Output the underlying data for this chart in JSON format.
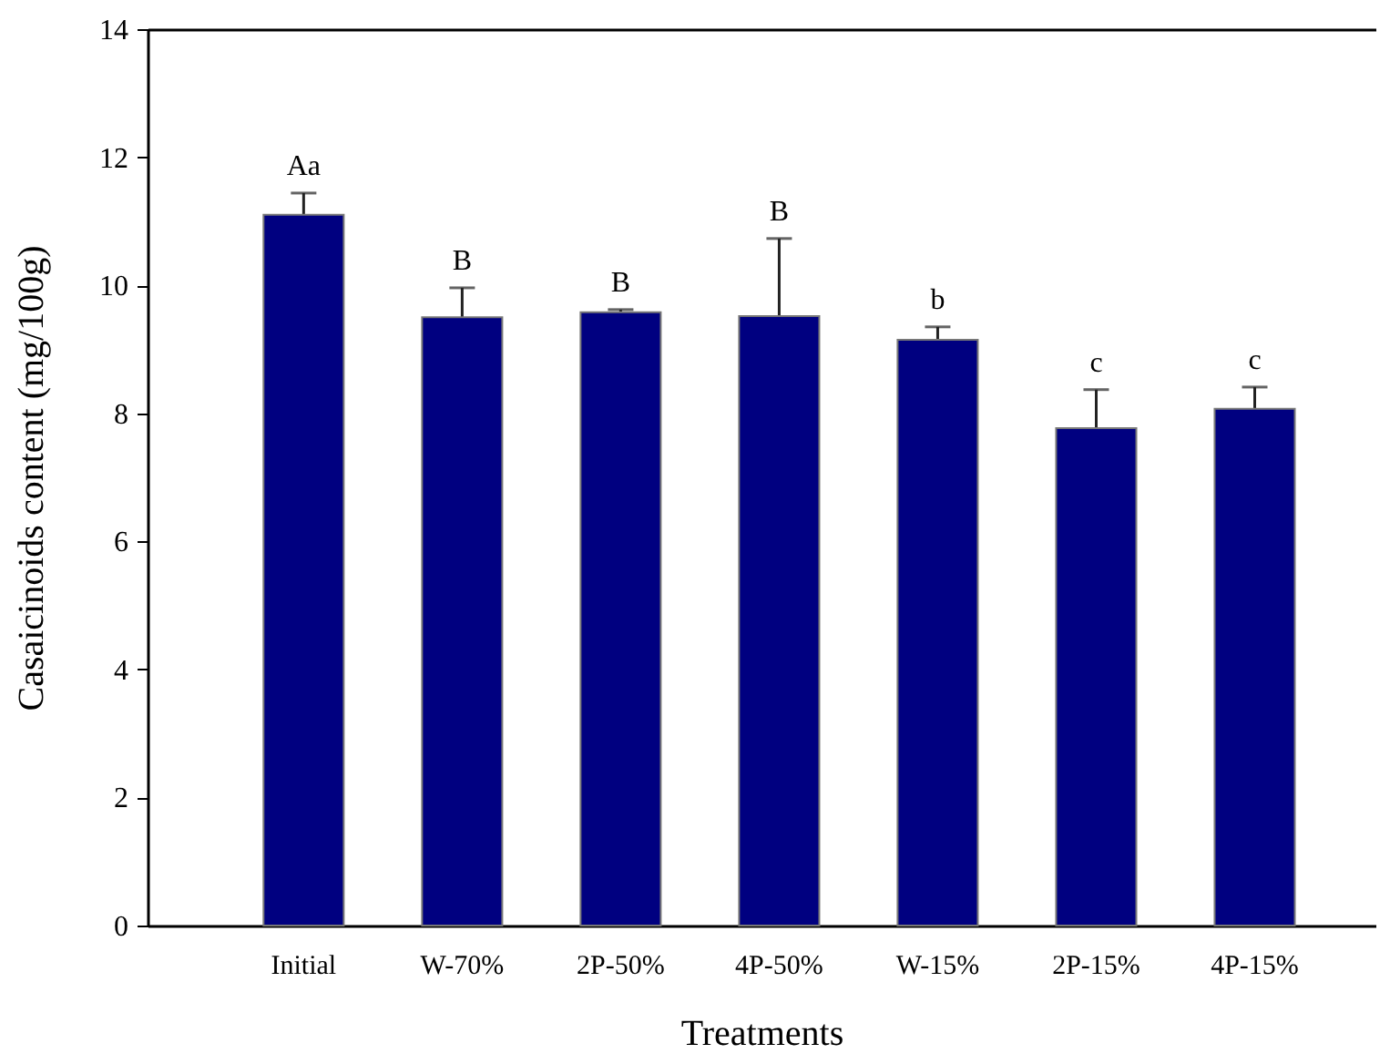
{
  "chart_data": {
    "type": "bar",
    "xlabel": "Treatments",
    "ylabel": "Casaicinoids content (mg/100g)",
    "categories": [
      "Initial",
      "W-70%",
      "2P-50%",
      "4P-50%",
      "W-15%",
      "2P-15%",
      "4P-15%"
    ],
    "values": [
      11.1,
      9.5,
      9.58,
      9.52,
      9.15,
      7.77,
      8.07
    ],
    "errors": [
      0.34,
      0.46,
      0.04,
      1.21,
      0.2,
      0.6,
      0.34
    ],
    "color": "#000080",
    "ylim": [
      0,
      14
    ],
    "yticks": [
      0,
      2,
      4,
      6,
      8,
      10,
      12,
      14
    ],
    "annotations": [
      {
        "text": "Aa",
        "x": "Initial",
        "y": 11.44
      },
      {
        "text": "B",
        "x": "W-70%",
        "y": 9.96
      },
      {
        "text": "B",
        "x": "2P-50%",
        "y": 9.62
      },
      {
        "text": "B",
        "x": "4P-50%",
        "y": 10.73
      },
      {
        "text": "b",
        "x": "W-15%",
        "y": 9.35
      },
      {
        "text": "c",
        "x": "2P-15%",
        "y": 8.37
      },
      {
        "text": "c",
        "x": "4P-15%",
        "y": 8.41
      }
    ]
  }
}
